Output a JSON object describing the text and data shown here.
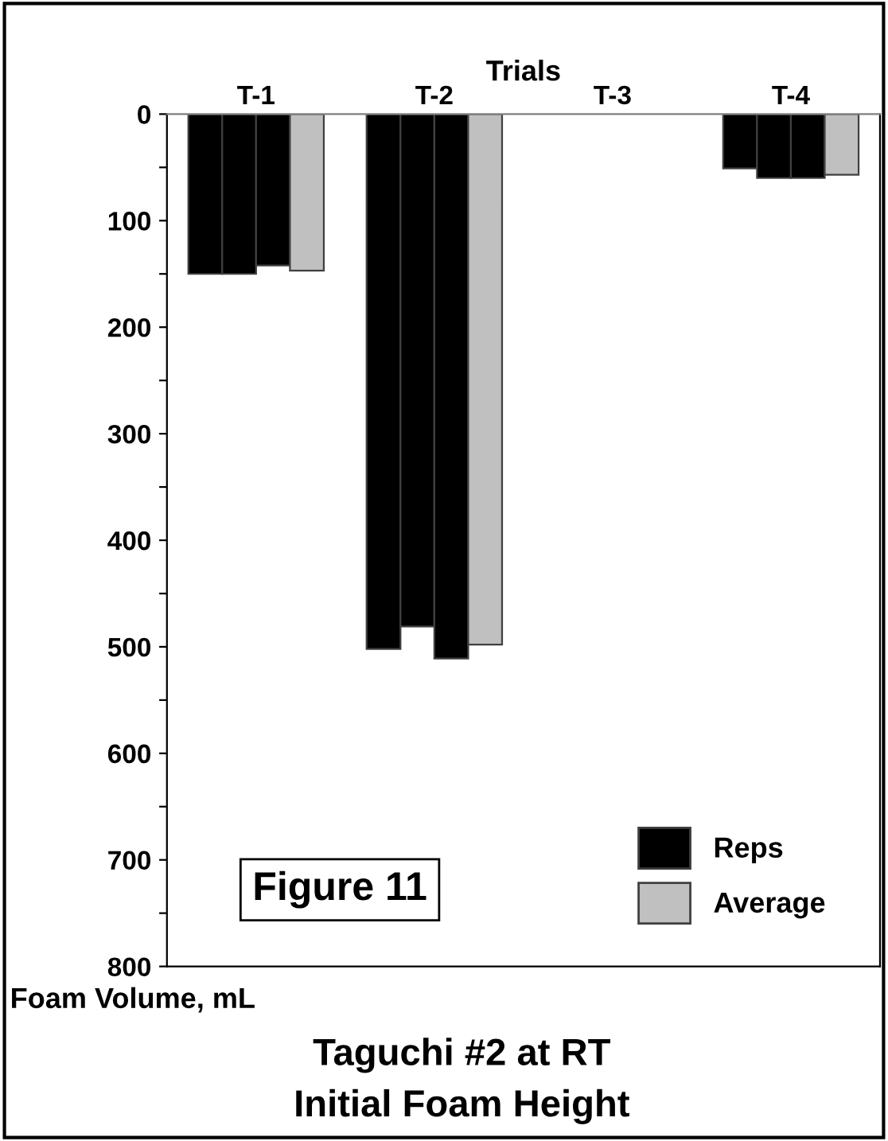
{
  "chart_data": {
    "type": "bar",
    "title": "Initial Foam Height",
    "subtitle": "Taguchi #2 at RT",
    "xlabel": "Trials",
    "ylabel": "Foam Volume, mL",
    "categories": [
      "T-1",
      "T-2",
      "T-3",
      "T-4"
    ],
    "series": [
      {
        "name": "Reps",
        "color": "#000000",
        "values": [
          150,
          502,
          null,
          51
        ]
      },
      {
        "color": "#000000",
        "values": [
          150,
          481,
          null,
          60
        ]
      },
      {
        "color": "#000000",
        "values": [
          142,
          511,
          null,
          60
        ]
      },
      {
        "name": "Average",
        "color": "#c0c0c0",
        "values": [
          147,
          498,
          null,
          57
        ]
      }
    ],
    "ylim": [
      800,
      0
    ],
    "yticks": [
      0,
      {
        "value": 50,
        "label": null
      },
      100,
      {
        "value": 150,
        "label": null
      },
      200,
      {
        "value": 250,
        "label": null
      },
      300,
      {
        "value": 350,
        "label": null
      },
      400,
      {
        "value": 450,
        "label": null
      },
      500,
      {
        "value": 550,
        "label": null
      },
      600,
      {
        "value": 650,
        "label": null
      },
      700,
      {
        "value": 750,
        "label": null
      },
      800
    ],
    "annotations": [
      "Figure 11"
    ],
    "legend": "bottom right",
    "grid": false
  }
}
